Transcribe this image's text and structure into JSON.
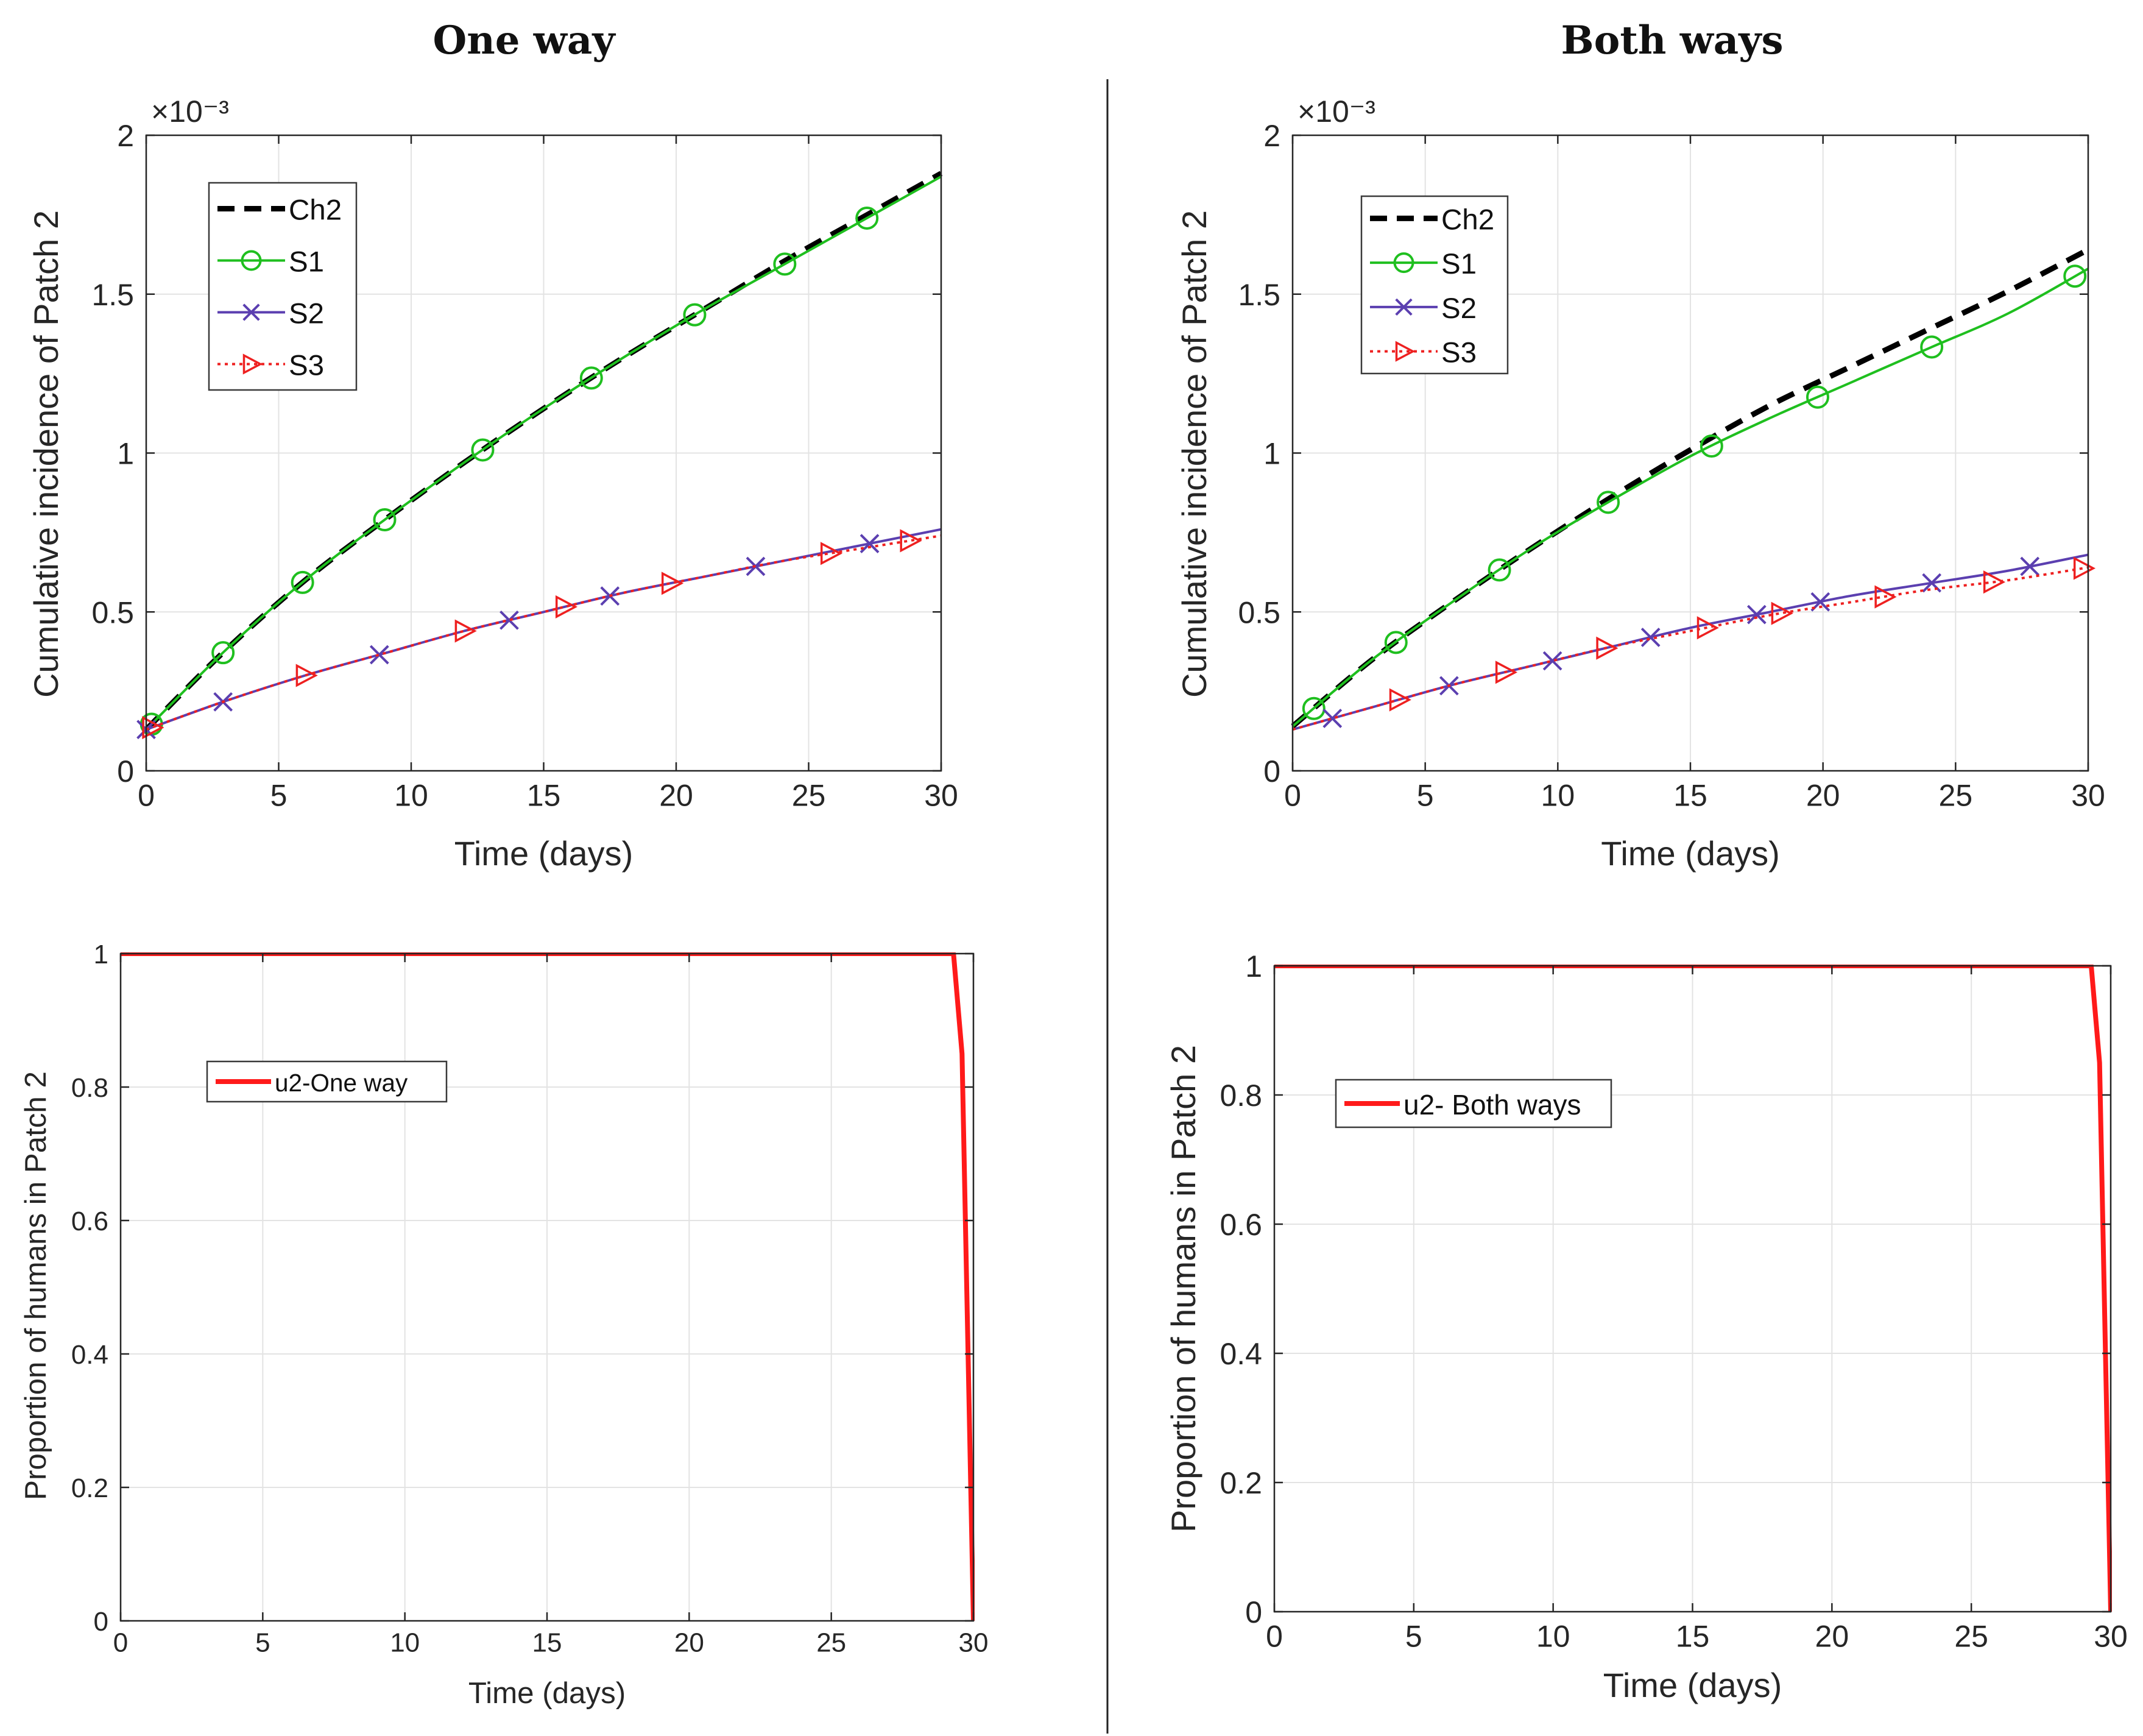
{
  "columns": [
    {
      "title": "One way"
    },
    {
      "title": "Both ways"
    }
  ],
  "colors": {
    "ch2": "#000000",
    "s1": "#1fbf1f",
    "s2": "#5b3fb0",
    "s3": "#ee2020",
    "u2": "#ff1a1a",
    "grid": "#e3e3e3",
    "axis": "#262626",
    "divider": "#222222"
  },
  "chart_data": [
    {
      "id": "top-left",
      "type": "line",
      "column": "One way",
      "xlabel": "Time (days)",
      "ylabel": "Cumulative incidence of Patch 2",
      "exponent_label": "×10⁻³",
      "xlim": [
        0,
        30
      ],
      "ylim": [
        0,
        2
      ],
      "xticks": [
        0,
        5,
        10,
        15,
        20,
        25,
        30
      ],
      "xtick_labels": [
        "0",
        "5",
        "10",
        "15",
        "20",
        "25",
        "30"
      ],
      "yticks": [
        0,
        0.5,
        1,
        1.5,
        2
      ],
      "ytick_labels": [
        "0",
        "0.5",
        "1",
        "1.5",
        "2"
      ],
      "grid": true,
      "legend_position": "top-left",
      "series": [
        {
          "name": "Ch2",
          "style": "dashed",
          "marker": "none",
          "color_key": "ch2",
          "x": [
            0,
            3,
            6,
            9,
            12,
            15,
            18,
            21,
            24,
            27,
            30
          ],
          "y": [
            0.13,
            0.38,
            0.6,
            0.79,
            0.97,
            1.14,
            1.3,
            1.45,
            1.6,
            1.74,
            1.88
          ]
        },
        {
          "name": "S1",
          "style": "solid",
          "marker": "circle",
          "color_key": "s1",
          "x": [
            0,
            3,
            6,
            9,
            12,
            15,
            18,
            21,
            24,
            27,
            30
          ],
          "y": [
            0.13,
            0.38,
            0.6,
            0.79,
            0.97,
            1.14,
            1.3,
            1.45,
            1.59,
            1.73,
            1.87
          ],
          "marker_x": [
            0.2,
            2.9,
            5.9,
            9.0,
            12.7,
            16.8,
            20.7,
            24.1,
            27.2
          ]
        },
        {
          "name": "S2",
          "style": "solid",
          "marker": "x",
          "color_key": "s2",
          "x": [
            0,
            3,
            6,
            9,
            12,
            15,
            18,
            21,
            24,
            27,
            30
          ],
          "y": [
            0.13,
            0.22,
            0.3,
            0.37,
            0.44,
            0.5,
            0.56,
            0.61,
            0.66,
            0.71,
            0.76
          ],
          "marker_x": [
            0,
            2.9,
            8.8,
            13.7,
            17.5,
            23.0,
            27.3
          ]
        },
        {
          "name": "S3",
          "style": "dotted",
          "marker": "triangle-right",
          "color_key": "s3",
          "x": [
            0,
            3,
            6,
            9,
            12,
            15,
            18,
            21,
            24,
            27,
            30
          ],
          "y": [
            0.13,
            0.22,
            0.3,
            0.37,
            0.44,
            0.5,
            0.56,
            0.61,
            0.66,
            0.7,
            0.74
          ],
          "marker_x": [
            0.2,
            6.0,
            12.0,
            15.8,
            19.8,
            25.8,
            28.8
          ]
        }
      ]
    },
    {
      "id": "top-right",
      "type": "line",
      "column": "Both ways",
      "xlabel": "Time (days)",
      "ylabel": "Cumulative incidence of Patch 2",
      "exponent_label": "×10⁻³",
      "xlim": [
        0,
        30
      ],
      "ylim": [
        0,
        2
      ],
      "xticks": [
        0,
        5,
        10,
        15,
        20,
        25,
        30
      ],
      "xtick_labels": [
        "0",
        "5",
        "10",
        "15",
        "20",
        "25",
        "30"
      ],
      "yticks": [
        0,
        0.5,
        1,
        1.5,
        2
      ],
      "ytick_labels": [
        "0",
        "0.5",
        "1",
        "1.5",
        "2"
      ],
      "grid": true,
      "legend_position": "top-left",
      "series": [
        {
          "name": "Ch2",
          "style": "dashed",
          "marker": "none",
          "color_key": "ch2",
          "x": [
            0,
            3,
            6,
            9,
            12,
            15,
            18,
            21,
            24,
            27,
            30
          ],
          "y": [
            0.14,
            0.35,
            0.53,
            0.7,
            0.86,
            1.01,
            1.15,
            1.27,
            1.39,
            1.51,
            1.64
          ]
        },
        {
          "name": "S1",
          "style": "solid",
          "marker": "circle",
          "color_key": "s1",
          "x": [
            0,
            3,
            6,
            9,
            12,
            15,
            18,
            21,
            24,
            27,
            30
          ],
          "y": [
            0.14,
            0.35,
            0.53,
            0.7,
            0.85,
            0.99,
            1.11,
            1.22,
            1.33,
            1.44,
            1.58
          ],
          "marker_x": [
            0.8,
            3.9,
            7.8,
            11.9,
            15.8,
            19.8,
            24.1,
            29.5
          ]
        },
        {
          "name": "S2",
          "style": "solid",
          "marker": "x",
          "color_key": "s2",
          "x": [
            0,
            3,
            6,
            9,
            12,
            15,
            18,
            21,
            24,
            27,
            30
          ],
          "y": [
            0.13,
            0.2,
            0.27,
            0.33,
            0.39,
            0.45,
            0.5,
            0.55,
            0.59,
            0.63,
            0.68
          ],
          "marker_x": [
            1.5,
            5.9,
            9.8,
            13.5,
            17.5,
            19.9,
            24.1,
            27.8
          ]
        },
        {
          "name": "S3",
          "style": "dotted",
          "marker": "triangle-right",
          "color_key": "s3",
          "x": [
            0,
            3,
            6,
            9,
            12,
            15,
            18,
            21,
            24,
            27,
            30
          ],
          "y": [
            0.13,
            0.2,
            0.27,
            0.33,
            0.39,
            0.44,
            0.49,
            0.53,
            0.57,
            0.6,
            0.64
          ],
          "marker_x": [
            4.0,
            8.0,
            11.8,
            15.6,
            18.4,
            22.3,
            26.4,
            29.8
          ]
        }
      ]
    },
    {
      "id": "bottom-left",
      "type": "line",
      "column": "One way",
      "xlabel": "Time (days)",
      "ylabel": "Proportion of humans in Patch 2",
      "xlim": [
        0,
        30
      ],
      "ylim": [
        0,
        1
      ],
      "xticks": [
        0,
        5,
        10,
        15,
        20,
        25,
        30
      ],
      "xtick_labels": [
        "0",
        "5",
        "10",
        "15",
        "20",
        "25",
        "30"
      ],
      "yticks": [
        0,
        0.2,
        0.4,
        0.6,
        0.8,
        1
      ],
      "ytick_labels": [
        "0",
        "0.2",
        "0.4",
        "0.6",
        "0.8",
        "1"
      ],
      "grid": true,
      "legend_position": "top-left",
      "series": [
        {
          "name": "u2-One way",
          "style": "solid",
          "marker": "none",
          "color_key": "u2",
          "x": [
            0,
            29.3,
            29.6,
            30.0
          ],
          "y": [
            1,
            1,
            0.85,
            0
          ]
        }
      ]
    },
    {
      "id": "bottom-right",
      "type": "line",
      "column": "Both ways",
      "xlabel": "Time (days)",
      "ylabel": "Proportion of humans in Patch 2",
      "xlim": [
        0,
        30
      ],
      "ylim": [
        0,
        1
      ],
      "xticks": [
        0,
        5,
        10,
        15,
        20,
        25,
        30
      ],
      "xtick_labels": [
        "0",
        "5",
        "10",
        "15",
        "20",
        "25",
        "30"
      ],
      "yticks": [
        0,
        0.2,
        0.4,
        0.6,
        0.8,
        1
      ],
      "ytick_labels": [
        "0",
        "0.2",
        "0.4",
        "0.6",
        "0.8",
        "1"
      ],
      "grid": true,
      "legend_position": "top-left",
      "series": [
        {
          "name": "u2- Both ways",
          "style": "solid",
          "marker": "none",
          "color_key": "u2",
          "x": [
            0,
            29.3,
            29.6,
            30.0
          ],
          "y": [
            1,
            1,
            0.85,
            0
          ]
        }
      ]
    }
  ]
}
